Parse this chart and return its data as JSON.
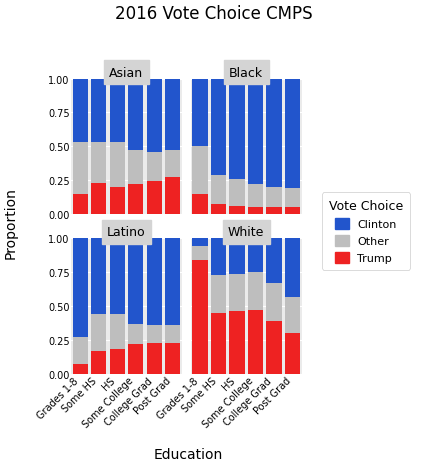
{
  "title": "2016 Vote Choice CMPS",
  "xlabel": "Education",
  "ylabel": "Proportion",
  "categories": [
    "Grades 1-8",
    "Some HS",
    "HS",
    "Some College",
    "College Grad",
    "Post Grad"
  ],
  "groups": [
    "Asian",
    "Black",
    "Latino",
    "White"
  ],
  "colors": {
    "Clinton": "#2255CC",
    "Other": "#BEBEBE",
    "Trump": "#EE2222"
  },
  "data": {
    "Asian": {
      "Trump": [
        0.15,
        0.23,
        0.2,
        0.22,
        0.24,
        0.27
      ],
      "Other": [
        0.38,
        0.3,
        0.33,
        0.25,
        0.22,
        0.2
      ],
      "Clinton": [
        0.47,
        0.47,
        0.47,
        0.53,
        0.54,
        0.53
      ]
    },
    "Black": {
      "Trump": [
        0.15,
        0.07,
        0.06,
        0.05,
        0.05,
        0.05
      ],
      "Other": [
        0.35,
        0.22,
        0.2,
        0.17,
        0.15,
        0.14
      ],
      "Clinton": [
        0.5,
        0.71,
        0.74,
        0.78,
        0.8,
        0.81
      ]
    },
    "Latino": {
      "Trump": [
        0.07,
        0.17,
        0.18,
        0.22,
        0.23,
        0.23
      ],
      "Other": [
        0.2,
        0.27,
        0.26,
        0.15,
        0.13,
        0.13
      ],
      "Clinton": [
        0.73,
        0.56,
        0.56,
        0.63,
        0.64,
        0.64
      ]
    },
    "White": {
      "Trump": [
        0.84,
        0.45,
        0.46,
        0.47,
        0.39,
        0.3
      ],
      "Other": [
        0.1,
        0.28,
        0.28,
        0.28,
        0.28,
        0.27
      ],
      "Clinton": [
        0.06,
        0.27,
        0.26,
        0.25,
        0.33,
        0.43
      ]
    }
  },
  "panel_background": "#EBEBEB",
  "grid_color": "#FFFFFF",
  "title_fontsize": 12,
  "axis_label_fontsize": 10,
  "tick_fontsize": 7,
  "panel_label_fontsize": 9,
  "legend_fontsize": 8,
  "legend_title_fontsize": 9
}
